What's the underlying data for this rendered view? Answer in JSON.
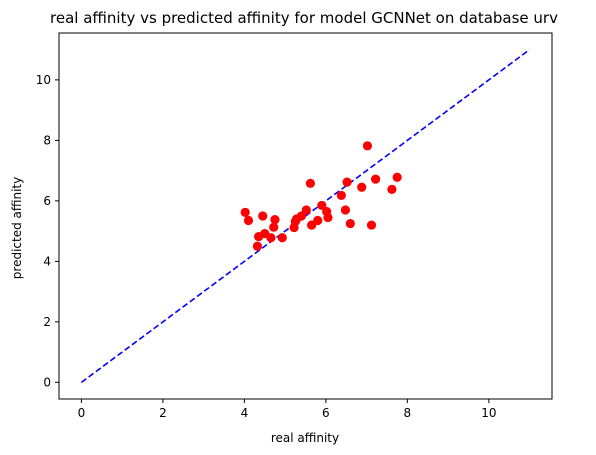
{
  "chart_data": {
    "type": "scatter",
    "title": "real affinity vs predicted affinity for model GCNNet on database urv",
    "xlabel": "real affinity",
    "ylabel": "predicted affinity",
    "xlim": [
      -0.55,
      11.55
    ],
    "ylim": [
      -0.55,
      11.55
    ],
    "xticks": [
      0,
      2,
      4,
      6,
      8,
      10
    ],
    "yticks": [
      0,
      2,
      4,
      6,
      8,
      10
    ],
    "grid": false,
    "points_color": "#ff0000",
    "reference_line": {
      "x": [
        0,
        11
      ],
      "y": [
        0,
        11
      ],
      "color": "#0000ff",
      "style": "dashed"
    },
    "series": [
      {
        "points": [
          [
            4.02,
            5.62
          ],
          [
            4.1,
            5.35
          ],
          [
            4.32,
            4.5
          ],
          [
            4.35,
            4.82
          ],
          [
            4.45,
            5.5
          ],
          [
            4.5,
            4.92
          ],
          [
            4.65,
            4.78
          ],
          [
            4.72,
            5.13
          ],
          [
            4.75,
            5.38
          ],
          [
            4.93,
            4.78
          ],
          [
            5.22,
            5.12
          ],
          [
            5.25,
            5.32
          ],
          [
            5.28,
            5.4
          ],
          [
            5.4,
            5.5
          ],
          [
            5.52,
            5.7
          ],
          [
            5.62,
            6.58
          ],
          [
            5.65,
            5.2
          ],
          [
            5.8,
            5.35
          ],
          [
            5.9,
            5.85
          ],
          [
            6.02,
            5.65
          ],
          [
            6.05,
            5.45
          ],
          [
            6.38,
            6.18
          ],
          [
            6.48,
            5.7
          ],
          [
            6.52,
            6.62
          ],
          [
            6.6,
            5.25
          ],
          [
            6.88,
            6.45
          ],
          [
            7.02,
            7.82
          ],
          [
            7.12,
            5.2
          ],
          [
            7.22,
            6.72
          ],
          [
            7.62,
            6.38
          ],
          [
            7.75,
            6.78
          ]
        ]
      }
    ]
  }
}
